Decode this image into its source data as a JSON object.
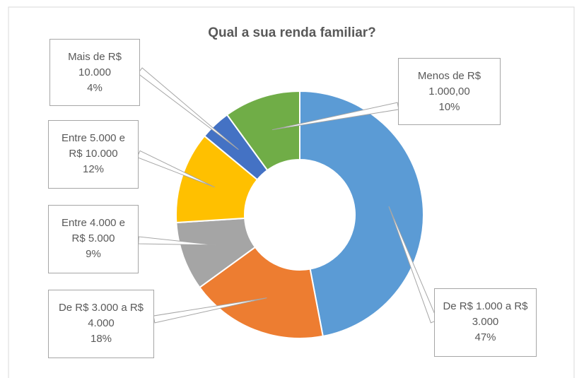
{
  "chart_data": {
    "type": "donut",
    "title": "Qual a sua renda familiar?",
    "categories": [
      "De R$ 1.000 a R$ 3.000",
      "De R$ 3.000 a R$ 4.000",
      "Entre 4.000 e R$ 5.000",
      "Entre 5.000 e R$ 10.000",
      "Mais de R$ 10.000",
      "Menos de R$ 1.000,00"
    ],
    "values": [
      47,
      18,
      9,
      12,
      4,
      10
    ],
    "value_labels": [
      "47%",
      "18%",
      "9%",
      "12%",
      "4%",
      "10%"
    ],
    "colors": [
      "#5b9bd5",
      "#ed7d31",
      "#a5a5a5",
      "#ffc000",
      "#4472c4",
      "#70ad47"
    ]
  }
}
